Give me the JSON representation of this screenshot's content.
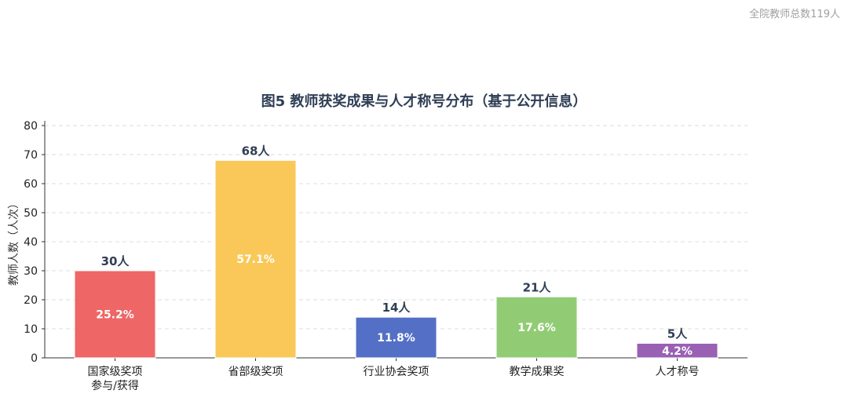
{
  "header_note": "全院教师总数119人",
  "chart_data": {
    "type": "bar",
    "title": "图5  教师获奖成果与人才称号分布（基于公开信息）",
    "xlabel": "",
    "ylabel": "教师人数（人次）",
    "ylim": [
      0,
      80
    ],
    "yticks": [
      0,
      10,
      20,
      30,
      40,
      50,
      60,
      70,
      80
    ],
    "grid": true,
    "categories": [
      [
        "国家级奖项",
        "参与/获得"
      ],
      [
        "省部级奖项"
      ],
      [
        "行业协会奖项"
      ],
      [
        "教学成果奖"
      ],
      [
        "人才称号"
      ]
    ],
    "values": [
      30,
      68,
      14,
      21,
      5
    ],
    "value_labels": [
      "30人",
      "68人",
      "14人",
      "21人",
      "5人"
    ],
    "percent_labels": [
      "25.2%",
      "57.1%",
      "11.8%",
      "17.6%",
      "4.2%"
    ],
    "colors": [
      "#ee6666",
      "#fac858",
      "#5470c6",
      "#91cc75",
      "#9a60b4"
    ]
  }
}
